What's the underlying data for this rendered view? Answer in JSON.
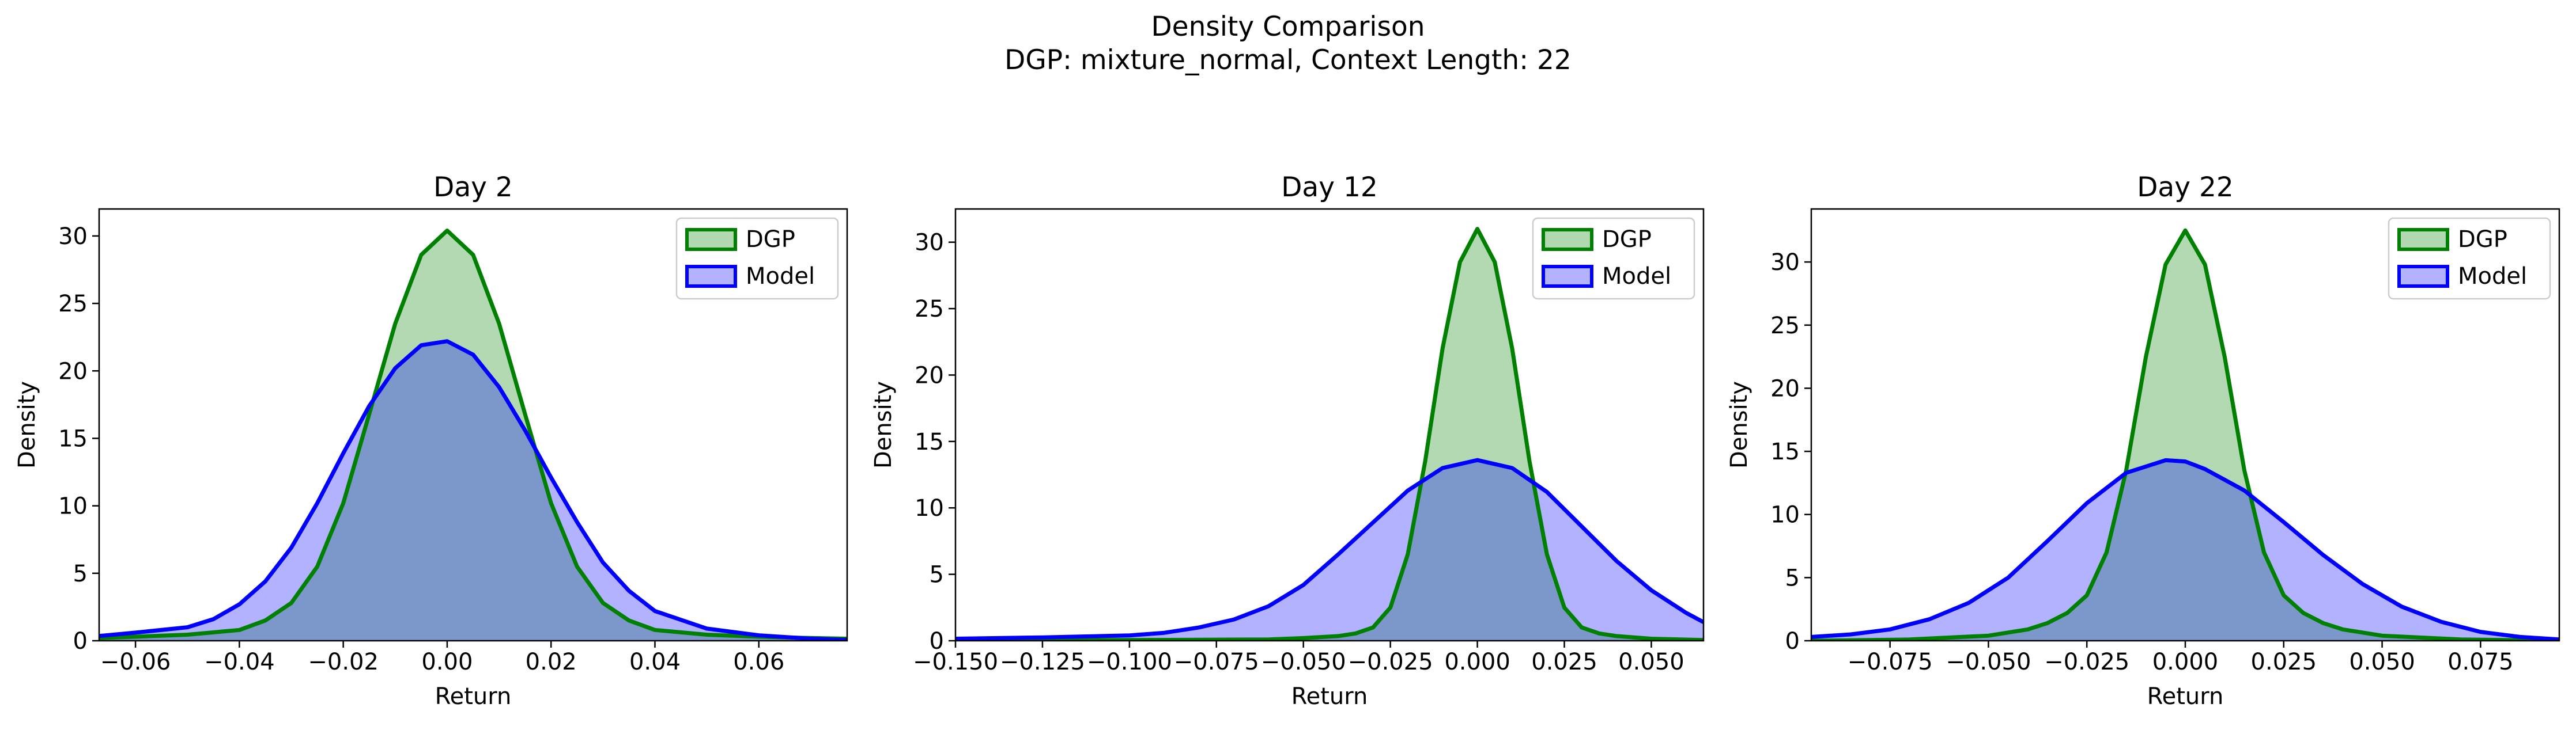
{
  "figure": {
    "title_line1": "Density Comparison",
    "title_line2": "DGP: mixture_normal, Context Length: 22"
  },
  "colors": {
    "dgp_line": "#008000",
    "dgp_fill": "#b2d8b2",
    "model_line": "#0000ff",
    "model_fill": "#b2b2ff",
    "overlap_fill": "#7f9bc8"
  },
  "chart_data": [
    {
      "type": "area",
      "title": "Day 2",
      "xlabel": "Return",
      "ylabel": "Density",
      "xlim": [
        -0.067,
        0.077
      ],
      "ylim": [
        0,
        32
      ],
      "xticks": [
        -0.06,
        -0.04,
        -0.02,
        0.0,
        0.02,
        0.04,
        0.06
      ],
      "xtick_labels": [
        "−0.06",
        "−0.04",
        "−0.02",
        "0.00",
        "0.02",
        "0.04",
        "0.06"
      ],
      "yticks": [
        0,
        5,
        10,
        15,
        20,
        25,
        30
      ],
      "ytick_labels": [
        "0",
        "5",
        "10",
        "15",
        "20",
        "25",
        "30"
      ],
      "legend": "top-right",
      "series": [
        {
          "name": "DGP",
          "x": [
            -0.067,
            -0.06,
            -0.05,
            -0.04,
            -0.035,
            -0.03,
            -0.025,
            -0.02,
            -0.015,
            -0.01,
            -0.005,
            0.0,
            0.005,
            0.01,
            0.015,
            0.02,
            0.025,
            0.03,
            0.035,
            0.04,
            0.05,
            0.06,
            0.07,
            0.077
          ],
          "y": [
            0.2,
            0.3,
            0.45,
            0.8,
            1.5,
            2.8,
            5.5,
            10.2,
            16.8,
            23.5,
            28.6,
            30.4,
            28.6,
            23.5,
            16.8,
            10.2,
            5.5,
            2.8,
            1.5,
            0.8,
            0.45,
            0.3,
            0.2,
            0.15
          ]
        },
        {
          "name": "Model",
          "x": [
            -0.067,
            -0.06,
            -0.05,
            -0.045,
            -0.04,
            -0.035,
            -0.03,
            -0.025,
            -0.02,
            -0.015,
            -0.01,
            -0.005,
            0.0,
            0.005,
            0.01,
            0.015,
            0.02,
            0.025,
            0.03,
            0.035,
            0.04,
            0.05,
            0.06,
            0.07,
            0.077
          ],
          "y": [
            0.35,
            0.6,
            1.0,
            1.6,
            2.7,
            4.4,
            6.9,
            10.2,
            13.9,
            17.4,
            20.2,
            21.9,
            22.2,
            21.2,
            18.8,
            15.6,
            12.1,
            8.8,
            5.8,
            3.7,
            2.2,
            0.9,
            0.4,
            0.15,
            0.05
          ]
        }
      ]
    },
    {
      "type": "area",
      "title": "Day 12",
      "xlabel": "Return",
      "ylabel": "Density",
      "xlim": [
        -0.15,
        0.065
      ],
      "ylim": [
        0,
        32.5
      ],
      "xticks": [
        -0.15,
        -0.125,
        -0.1,
        -0.075,
        -0.05,
        -0.025,
        0.0,
        0.025,
        0.05
      ],
      "xtick_labels": [
        "−0.150",
        "−0.125",
        "−0.100",
        "−0.075",
        "−0.050",
        "−0.025",
        "0.000",
        "0.025",
        "0.050"
      ],
      "yticks": [
        0,
        5,
        10,
        15,
        20,
        25,
        30
      ],
      "ytick_labels": [
        "0",
        "5",
        "10",
        "15",
        "20",
        "25",
        "30"
      ],
      "legend": "top-right",
      "series": [
        {
          "name": "DGP",
          "x": [
            -0.15,
            -0.1,
            -0.06,
            -0.05,
            -0.04,
            -0.035,
            -0.03,
            -0.025,
            -0.02,
            -0.015,
            -0.01,
            -0.005,
            0.0,
            0.005,
            0.01,
            0.015,
            0.02,
            0.025,
            0.03,
            0.035,
            0.04,
            0.05,
            0.065
          ],
          "y": [
            0.0,
            0.05,
            0.1,
            0.2,
            0.35,
            0.55,
            1.0,
            2.5,
            6.5,
            13.5,
            22.0,
            28.5,
            31.0,
            28.5,
            22.0,
            13.5,
            6.5,
            2.5,
            1.0,
            0.55,
            0.35,
            0.15,
            0.05
          ]
        },
        {
          "name": "Model",
          "x": [
            -0.15,
            -0.125,
            -0.1,
            -0.09,
            -0.08,
            -0.07,
            -0.06,
            -0.05,
            -0.04,
            -0.03,
            -0.02,
            -0.01,
            0.0,
            0.01,
            0.02,
            0.03,
            0.04,
            0.05,
            0.06,
            0.065
          ],
          "y": [
            0.15,
            0.25,
            0.4,
            0.6,
            1.0,
            1.6,
            2.6,
            4.2,
            6.5,
            8.9,
            11.3,
            13.0,
            13.6,
            13.0,
            11.2,
            8.6,
            6.0,
            3.8,
            2.1,
            1.4
          ]
        }
      ]
    },
    {
      "type": "area",
      "title": "Day 22",
      "xlabel": "Return",
      "ylabel": "Density",
      "xlim": [
        -0.095,
        0.095
      ],
      "ylim": [
        0,
        34.2
      ],
      "xticks": [
        -0.075,
        -0.05,
        -0.025,
        0.0,
        0.025,
        0.05,
        0.075
      ],
      "xtick_labels": [
        "−0.075",
        "−0.050",
        "−0.025",
        "0.000",
        "0.025",
        "0.050",
        "0.075"
      ],
      "yticks": [
        0,
        5,
        10,
        15,
        20,
        25,
        30
      ],
      "ytick_labels": [
        "0",
        "5",
        "10",
        "15",
        "20",
        "25",
        "30"
      ],
      "legend": "top-right",
      "series": [
        {
          "name": "DGP",
          "x": [
            -0.095,
            -0.07,
            -0.05,
            -0.04,
            -0.035,
            -0.03,
            -0.025,
            -0.02,
            -0.015,
            -0.01,
            -0.005,
            0.0,
            0.005,
            0.01,
            0.015,
            0.02,
            0.025,
            0.03,
            0.035,
            0.04,
            0.05,
            0.07,
            0.095
          ],
          "y": [
            0.0,
            0.1,
            0.4,
            0.9,
            1.4,
            2.2,
            3.6,
            7.0,
            13.5,
            22.5,
            29.8,
            32.5,
            29.8,
            22.5,
            13.5,
            7.0,
            3.6,
            2.2,
            1.4,
            0.9,
            0.4,
            0.1,
            0.0
          ]
        },
        {
          "name": "Model",
          "x": [
            -0.095,
            -0.085,
            -0.075,
            -0.065,
            -0.055,
            -0.045,
            -0.035,
            -0.025,
            -0.015,
            -0.005,
            0.0,
            0.005,
            0.015,
            0.025,
            0.035,
            0.045,
            0.055,
            0.065,
            0.075,
            0.085,
            0.095
          ],
          "y": [
            0.3,
            0.5,
            0.9,
            1.7,
            3.0,
            5.0,
            7.9,
            10.9,
            13.3,
            14.3,
            14.2,
            13.6,
            11.9,
            9.4,
            6.8,
            4.5,
            2.7,
            1.5,
            0.7,
            0.3,
            0.1
          ]
        }
      ]
    }
  ]
}
